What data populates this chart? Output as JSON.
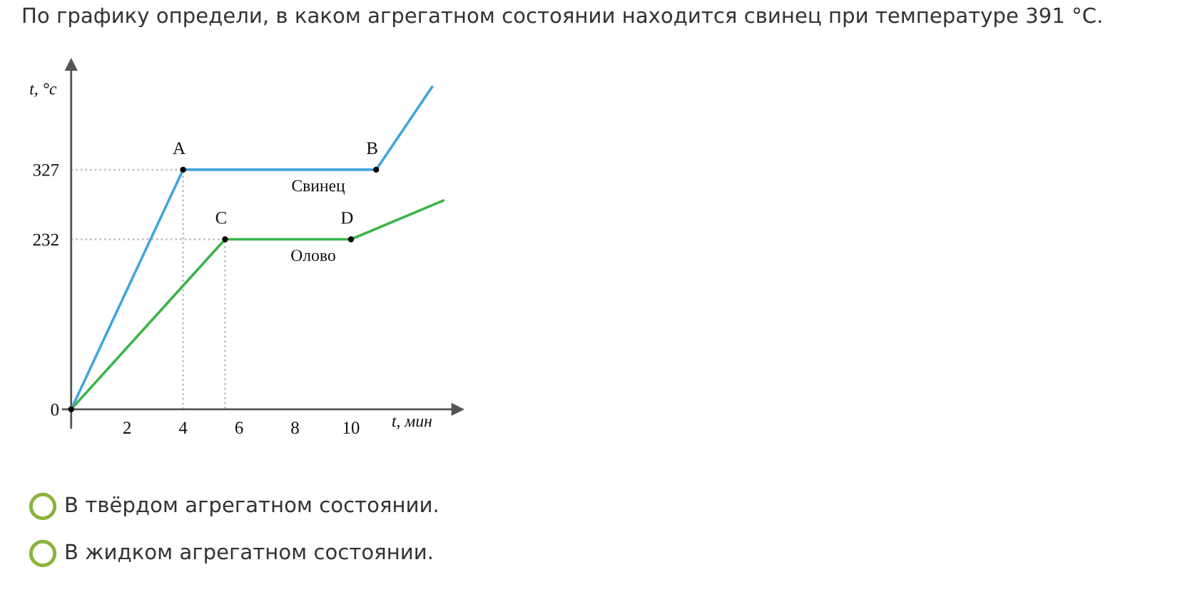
{
  "chart_data": {
    "type": "line",
    "title": "По графику определи, в каком агрегатном состоянии находится свинец при температуре 391 °C.",
    "xlabel": "t, мин",
    "ylabel": "t, °c",
    "series": [
      {
        "x": [
          0,
          4,
          4
        ],
        "values": [
          327,
          327,
          0
        ],
        "color": "#bbbbbb",
        "line_style": "dotted"
      },
      {
        "x": [
          0,
          5.5,
          5.5
        ],
        "values": [
          232,
          232,
          0
        ],
        "color": "#bbbbbb",
        "line_style": "dotted"
      },
      {
        "name": "Свинец",
        "x": [
          0,
          4,
          10.9,
          12.9
        ],
        "values": [
          0,
          327,
          327,
          440
        ],
        "color": "#42a5dc"
      },
      {
        "name": "Олово",
        "x": [
          0,
          5.5,
          10,
          13.3
        ],
        "values": [
          0,
          232,
          232,
          285
        ],
        "color": "#3bb54a"
      },
      {
        "type": "scatter",
        "x": [
          0,
          4,
          10.9,
          5.5,
          10
        ],
        "values": [
          0,
          327,
          327,
          232,
          232
        ],
        "color": "#000000",
        "marker": "circle"
      }
    ],
    "xlim": [
      -0.3,
      13.8
    ],
    "ylim": [
      -25,
      470
    ],
    "xticks": [
      2,
      4,
      6,
      8,
      10
    ],
    "yticks": [
      0,
      232,
      327
    ],
    "annotations": [
      {
        "text": "A",
        "x": 4,
        "y": 327
      },
      {
        "text": "B",
        "x": 10.9,
        "y": 327
      },
      {
        "text": "C",
        "x": 5.5,
        "y": 232
      },
      {
        "text": "D",
        "x": 10,
        "y": 232
      },
      "В твёрдом агрегатном состоянии.",
      "В жидком агрегатном состоянии."
    ]
  }
}
